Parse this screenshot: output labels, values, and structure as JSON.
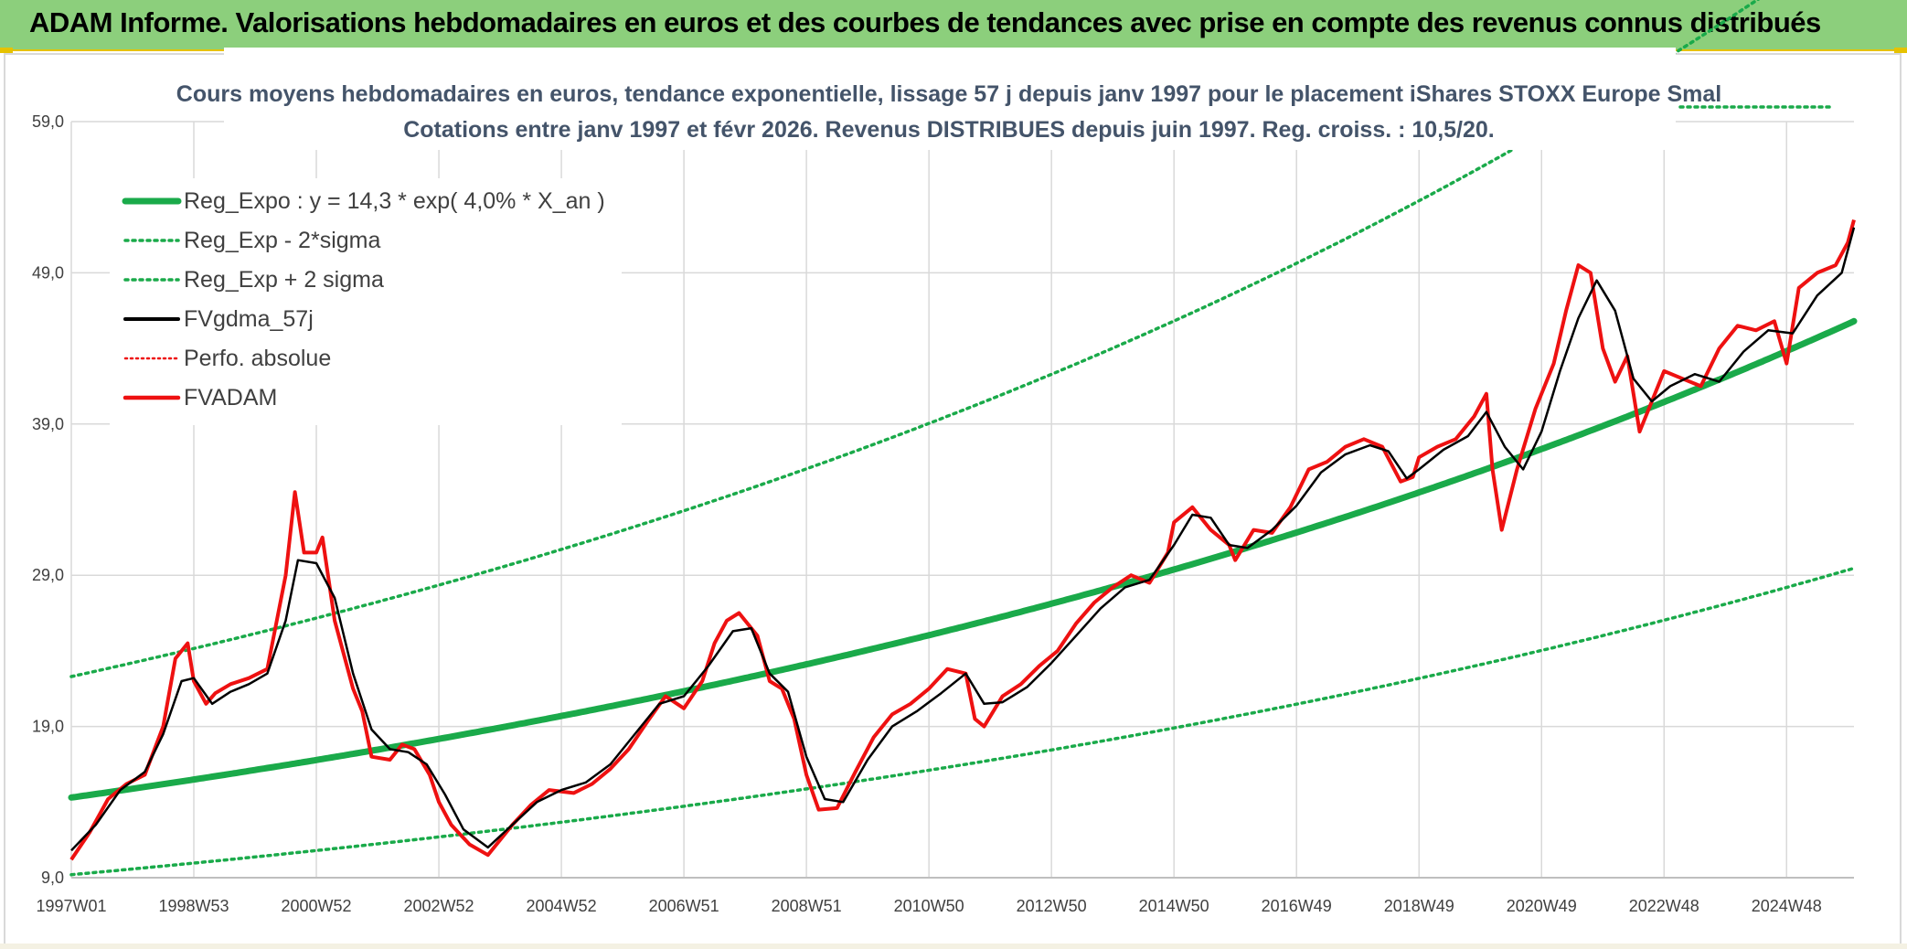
{
  "banner": {
    "title": "ADAM Informe. Valorisations hebdomadaires en euros et des courbes de tendances avec prise en compte des revenus connus distribués"
  },
  "colors": {
    "banner_bg": "#8ccf7c",
    "accent_yellow": "#e6c200",
    "trend_green": "#1aaa4a",
    "smooth_black": "#000000",
    "price_red": "#ee1111",
    "grid": "#d9d9d9"
  },
  "chart_data": {
    "type": "line",
    "title": [
      "Cours moyens hebdomadaires en euros, tendance exponentielle, lissage 57 j depuis janv 1997 pour le placement iShares STOXX Europe Smal",
      "Cotations entre janv 1997 et févr 2026. Revenus DISTRIBUES depuis juin 1997. Reg. croiss. : 10,5/20."
    ],
    "xlabel": "",
    "ylabel": "",
    "x_range": [
      1997.0,
      2026.1
    ],
    "ylim": [
      9.0,
      59.0
    ],
    "y_ticks": [
      "59,0",
      "49,0",
      "39,0",
      "29,0",
      "19,0",
      "9,0"
    ],
    "y_tick_values": [
      59,
      49,
      39,
      29,
      19,
      9
    ],
    "x_ticks": [
      "1997W01",
      "1998W53",
      "2000W52",
      "2002W52",
      "2004W52",
      "2006W51",
      "2008W51",
      "2010W50",
      "2012W50",
      "2014W50",
      "2016W49",
      "2018W49",
      "2020W49",
      "2022W48",
      "2024W48"
    ],
    "x_tick_values": [
      1997.0,
      1999.0,
      2001.0,
      2003.0,
      2005.0,
      2007.0,
      2009.0,
      2011.0,
      2013.0,
      2015.0,
      2017.0,
      2019.0,
      2021.0,
      2023.0,
      2025.0
    ],
    "grid": true,
    "legend_position": "top-left",
    "legend": [
      {
        "label": "Reg_Expo : y = 14,3 * exp( 4,0% *  X_an )",
        "style": "solid-thick-green"
      },
      {
        "label": "Reg_Exp - 2*sigma",
        "style": "dotted-green"
      },
      {
        "label": "Reg_Exp + 2 sigma",
        "style": "dotted-green"
      },
      {
        "label": "FVgdma_57j",
        "style": "solid-black"
      },
      {
        "label": "Perfo. absolue",
        "style": "dotted-red"
      },
      {
        "label": "FVADAM",
        "style": "solid-red"
      }
    ],
    "series": [
      {
        "name": "Reg_Expo",
        "kind": "exponential",
        "a": 14.3,
        "rate": 0.04,
        "x0": 1997.0
      },
      {
        "name": "Reg_Exp - 2*sigma",
        "kind": "exponential",
        "a": 9.2,
        "rate": 0.04,
        "x0": 1997.0
      },
      {
        "name": "Reg_Exp + 2 sigma",
        "kind": "exponential",
        "a": 22.3,
        "rate": 0.04,
        "x0": 1997.0
      },
      {
        "name": "FVADAM",
        "x": [
          1997.0,
          1997.3,
          1997.6,
          1997.9,
          1998.2,
          1998.5,
          1998.7,
          1998.9,
          1999.0,
          1999.2,
          1999.35,
          1999.6,
          1999.9,
          2000.2,
          2000.5,
          2000.65,
          2000.8,
          2001.0,
          2001.1,
          2001.3,
          2001.6,
          2001.75,
          2001.9,
          2002.2,
          2002.4,
          2002.6,
          2002.85,
          2003.0,
          2003.2,
          2003.5,
          2003.8,
          2004.2,
          2004.5,
          2004.8,
          2005.2,
          2005.5,
          2005.8,
          2006.1,
          2006.4,
          2006.7,
          2007.0,
          2007.3,
          2007.5,
          2007.7,
          2007.9,
          2008.2,
          2008.4,
          2008.6,
          2008.8,
          2009.0,
          2009.2,
          2009.5,
          2009.8,
          2010.1,
          2010.4,
          2010.7,
          2011.0,
          2011.3,
          2011.6,
          2011.75,
          2011.9,
          2012.2,
          2012.5,
          2012.8,
          2013.1,
          2013.4,
          2013.7,
          2014.0,
          2014.3,
          2014.6,
          2014.9,
          2015.0,
          2015.3,
          2015.6,
          2015.9,
          2016.0,
          2016.3,
          2016.6,
          2016.9,
          2017.2,
          2017.5,
          2017.8,
          2018.1,
          2018.4,
          2018.7,
          2018.9,
          2019.0,
          2019.3,
          2019.6,
          2019.9,
          2020.1,
          2020.2,
          2020.35,
          2020.6,
          2020.9,
          2021.2,
          2021.4,
          2021.6,
          2021.8,
          2022.0,
          2022.2,
          2022.4,
          2022.6,
          2022.8,
          2023.0,
          2023.3,
          2023.6,
          2023.9,
          2024.2,
          2024.5,
          2024.8,
          2025.0,
          2025.2,
          2025.5,
          2025.8,
          2026.0,
          2026.1
        ],
        "y": [
          10.2,
          12.0,
          14.2,
          15.2,
          15.8,
          19.0,
          23.5,
          24.5,
          22.0,
          20.5,
          21.2,
          21.8,
          22.2,
          22.8,
          29.0,
          34.5,
          30.5,
          30.5,
          31.5,
          26.0,
          21.5,
          20.0,
          17.0,
          16.8,
          17.8,
          17.5,
          15.8,
          14.0,
          12.5,
          11.2,
          10.5,
          12.5,
          13.8,
          14.8,
          14.6,
          15.2,
          16.2,
          17.5,
          19.3,
          21.0,
          20.2,
          22.0,
          24.5,
          26.0,
          26.5,
          25.0,
          22.0,
          21.5,
          19.5,
          15.8,
          13.5,
          13.6,
          16.0,
          18.3,
          19.8,
          20.5,
          21.5,
          22.8,
          22.5,
          19.5,
          19.0,
          21.0,
          21.8,
          23.0,
          24.0,
          25.8,
          27.2,
          28.2,
          29.0,
          28.5,
          30.5,
          32.5,
          33.5,
          32.0,
          31.0,
          30.0,
          32.0,
          31.8,
          33.5,
          36.0,
          36.5,
          37.5,
          38.0,
          37.5,
          35.2,
          35.5,
          36.8,
          37.5,
          38.0,
          39.5,
          41.0,
          36.0,
          32.0,
          36.0,
          40.0,
          43.0,
          46.5,
          49.5,
          49.0,
          44.0,
          41.8,
          43.5,
          38.5,
          40.5,
          42.5,
          42.0,
          41.5,
          44.0,
          45.5,
          45.2,
          45.8,
          43.0,
          48.0,
          49.0,
          49.5,
          51.0,
          52.5
        ]
      },
      {
        "name": "FVgdma_57j",
        "x": [
          1997.0,
          1997.4,
          1997.8,
          1998.2,
          1998.5,
          1998.8,
          1999.0,
          1999.3,
          1999.6,
          1999.9,
          2000.2,
          2000.5,
          2000.7,
          2001.0,
          2001.3,
          2001.6,
          2001.9,
          2002.2,
          2002.5,
          2002.8,
          2003.1,
          2003.4,
          2003.8,
          2004.2,
          2004.6,
          2005.0,
          2005.4,
          2005.8,
          2006.2,
          2006.6,
          2007.0,
          2007.4,
          2007.8,
          2008.1,
          2008.4,
          2008.7,
          2009.0,
          2009.3,
          2009.6,
          2010.0,
          2010.4,
          2010.8,
          2011.2,
          2011.6,
          2011.9,
          2012.2,
          2012.6,
          2013.0,
          2013.4,
          2013.8,
          2014.2,
          2014.6,
          2015.0,
          2015.3,
          2015.6,
          2015.9,
          2016.2,
          2016.6,
          2017.0,
          2017.4,
          2017.8,
          2018.2,
          2018.5,
          2018.8,
          2019.0,
          2019.4,
          2019.8,
          2020.1,
          2020.4,
          2020.7,
          2021.0,
          2021.3,
          2021.6,
          2021.9,
          2022.2,
          2022.5,
          2022.8,
          2023.1,
          2023.5,
          2023.9,
          2024.3,
          2024.7,
          2025.1,
          2025.5,
          2025.9,
          2026.1
        ],
        "y": [
          10.8,
          12.5,
          14.8,
          16.0,
          18.5,
          22.0,
          22.2,
          20.5,
          21.3,
          21.8,
          22.5,
          26.0,
          30.0,
          29.8,
          27.5,
          22.5,
          18.8,
          17.5,
          17.3,
          16.5,
          14.5,
          12.2,
          11.0,
          12.5,
          14.0,
          14.8,
          15.3,
          16.5,
          18.5,
          20.5,
          21.0,
          23.0,
          25.3,
          25.5,
          22.5,
          21.3,
          17.0,
          14.2,
          14.0,
          16.8,
          19.0,
          20.0,
          21.2,
          22.5,
          20.5,
          20.6,
          21.6,
          23.2,
          25.0,
          26.8,
          28.2,
          28.7,
          31.0,
          33.0,
          32.8,
          31.0,
          30.8,
          32.0,
          33.6,
          35.8,
          37.0,
          37.6,
          37.2,
          35.4,
          36.0,
          37.3,
          38.2,
          39.8,
          37.5,
          36.0,
          38.5,
          42.5,
          46.0,
          48.5,
          46.5,
          42.0,
          40.5,
          41.5,
          42.3,
          41.8,
          43.8,
          45.2,
          45.0,
          47.5,
          49.0,
          52.0
        ]
      }
    ]
  }
}
